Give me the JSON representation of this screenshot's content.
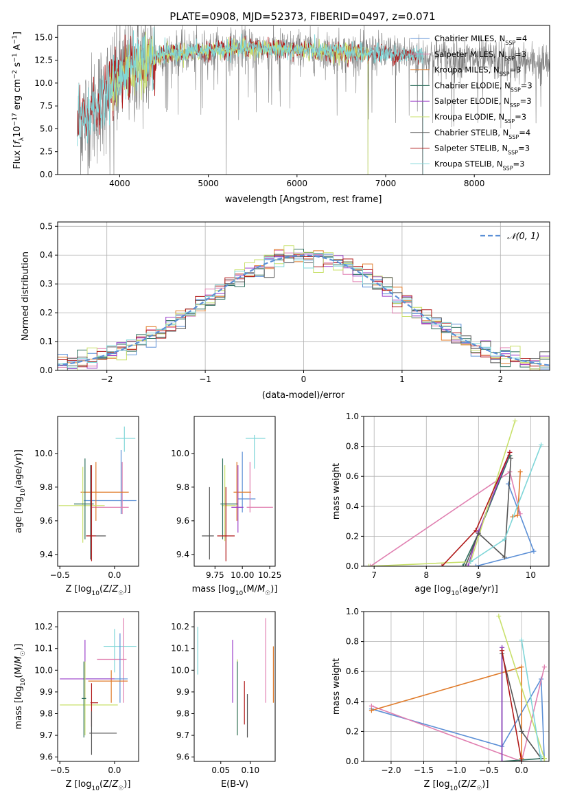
{
  "figure": {
    "title": "PLATE=0908, MJD=52373, FIBERID=0497, z=0.071"
  },
  "colors": {
    "Chabrier MILES": "#5b8fd6",
    "Salpeter MILES": "#e07fb0",
    "Kroupa MILES": "#e07b2a",
    "Chabrier ELODIE": "#2f6f5e",
    "Salpeter ELODIE": "#9b3fc9",
    "Kroupa ELODIE": "#c8e06a",
    "Chabrier STELIB": "#555555",
    "Salpeter STELIB": "#b01818",
    "Kroupa STELIB": "#7fd6d8",
    "data": "#808080",
    "normal": "#5b8fd6"
  },
  "chart_data": [
    {
      "id": "spectrum",
      "type": "line",
      "title": "PLATE=0908, MJD=52373, FIBERID=0497, z=0.071",
      "xlabel": "wavelength [Angstrom, rest frame]",
      "ylabel_parts": [
        "Flux [",
        "f",
        "λ",
        "10",
        "−17",
        " erg cm",
        "−2",
        " s",
        "−1",
        " A",
        "−1",
        "]"
      ],
      "xlim": [
        3300,
        8850
      ],
      "ylim": [
        0,
        16.3
      ],
      "xticks": [
        4000,
        5000,
        6000,
        7000,
        8000
      ],
      "yticks": [
        0.0,
        2.5,
        5.0,
        7.5,
        10.0,
        12.5,
        15.0
      ],
      "legend_position": "right",
      "legend": [
        {
          "base": "Chabrier MILES, N",
          "sub": "SSP",
          "post": "=4",
          "color_key": "Chabrier MILES"
        },
        {
          "base": "Salpeter MILES, N",
          "sub": "SSP",
          "post": "=3",
          "color_key": "Salpeter MILES"
        },
        {
          "base": "Kroupa MILES, N",
          "sub": "SSP",
          "post": "=3",
          "color_key": "Kroupa MILES"
        },
        {
          "base": "Chabrier ELODIE, N",
          "sub": "SSP",
          "post": "=3",
          "color_key": "Chabrier ELODIE"
        },
        {
          "base": "Salpeter ELODIE, N",
          "sub": "SSP",
          "post": "=3",
          "color_key": "Salpeter ELODIE"
        },
        {
          "base": "Kroupa ELODIE, N",
          "sub": "SSP",
          "post": "=3",
          "color_key": "Kroupa ELODIE"
        },
        {
          "base": "Chabrier STELIB, N",
          "sub": "SSP",
          "post": "=4",
          "color_key": "Chabrier STELIB"
        },
        {
          "base": "Salpeter STELIB, N",
          "sub": "SSP",
          "post": "=3",
          "color_key": "Salpeter STELIB"
        },
        {
          "base": "Kroupa STELIB, N",
          "sub": "SSP",
          "post": "=3",
          "color_key": "Kroupa STELIB"
        }
      ],
      "continuum_x": [
        3530,
        3700,
        3900,
        4100,
        4300,
        4500,
        4800,
        5100,
        5500,
        6000,
        6500,
        7000,
        7500,
        8000,
        8500,
        8850
      ],
      "continuum_y": [
        5.5,
        7.0,
        9.5,
        11.5,
        12.5,
        13.2,
        13.4,
        13.6,
        13.8,
        13.6,
        13.4,
        13.2,
        12.9,
        12.6,
        12.3,
        12.1
      ],
      "data_range": [
        3530,
        8850
      ],
      "model_ranges": {
        "Kroupa STELIB": [
          3520,
          7420
        ],
        "Salpeter STELIB": [
          3520,
          7420
        ],
        "Kroupa ELODIE": [
          3890,
          6800
        ]
      },
      "dips": [
        {
          "x": 3890,
          "y": 0.0
        },
        {
          "x": 3935,
          "y": 0.0
        },
        {
          "x": 5200,
          "y": 0.0
        },
        {
          "x": 6800,
          "y": 0.0
        },
        {
          "x": 7415,
          "y": 0.0
        }
      ]
    },
    {
      "id": "residuals",
      "type": "histogram",
      "xlabel": "(data-model)/error",
      "ylabel": "Normed distribution",
      "xlim": [
        -2.5,
        2.5
      ],
      "ylim": [
        0,
        0.515
      ],
      "xticks": [
        -2,
        -1,
        0,
        1,
        2
      ],
      "xtick_labels": [
        "−2",
        "−1",
        "0",
        "1",
        "2"
      ],
      "yticks": [
        0.0,
        0.1,
        0.2,
        0.3,
        0.4,
        0.5
      ],
      "legend_label": "𝒩(0, 1)",
      "legend_position": "top-right",
      "bin_width": 0.1,
      "series_order": [
        "Chabrier MILES",
        "Salpeter MILES",
        "Kroupa MILES",
        "Chabrier ELODIE",
        "Salpeter ELODIE",
        "Kroupa ELODIE",
        "Chabrier STELIB",
        "Salpeter STELIB",
        "Kroupa STELIB"
      ]
    },
    {
      "id": "age_vs_z",
      "type": "errorbar",
      "xlabel": "Z [log10(Z/Z☉)]",
      "ylabel": "age  [log10(age/yr)]",
      "xlim": [
        -0.52,
        0.22
      ],
      "ylim": [
        9.33,
        10.22
      ],
      "xticks": [
        -0.5,
        0.0
      ],
      "xtick_labels": [
        "−0.5",
        "0.0"
      ],
      "yticks": [
        9.4,
        9.6,
        9.8,
        10.0
      ],
      "points": [
        {
          "series": "Kroupa STELIB",
          "x": 0.09,
          "y": 10.09,
          "xerr": [
            0.08,
            0.1
          ],
          "yerr": [
            0.08,
            0.07
          ]
        },
        {
          "series": "Chabrier MILES",
          "x": 0.06,
          "y": 9.72,
          "xerr": [
            0.34,
            0.14
          ],
          "yerr": [
            0.08,
            0.3
          ]
        },
        {
          "series": "Salpeter MILES",
          "x": 0.07,
          "y": 9.68,
          "xerr": [
            0.28,
            0.06
          ],
          "yerr": [
            0.04,
            0.27
          ]
        },
        {
          "series": "Kroupa MILES",
          "x": -0.17,
          "y": 9.77,
          "xerr": [
            0.14,
            0.3
          ],
          "yerr": [
            0.17,
            0.18
          ]
        },
        {
          "series": "Kroupa ELODIE",
          "x": -0.29,
          "y": 9.69,
          "xerr": [
            0.22,
            0.2
          ],
          "yerr": [
            0.22,
            0.23
          ]
        },
        {
          "series": "Chabrier ELODIE",
          "x": -0.27,
          "y": 9.7,
          "xerr": [
            0.1,
            0.08
          ],
          "yerr": [
            0.21,
            0.27
          ]
        },
        {
          "series": "Chabrier STELIB",
          "x": -0.22,
          "y": 9.51,
          "xerr": [
            0.04,
            0.14
          ],
          "yerr": [
            0.14,
            0.42
          ]
        },
        {
          "series": "Salpeter STELIB",
          "x": -0.21,
          "y": 9.51,
          "xerr": [
            0.05,
            0.04
          ],
          "yerr": [
            0.15,
            0.42
          ]
        }
      ]
    },
    {
      "id": "age_vs_mass",
      "type": "errorbar",
      "xlabel": "mass [log10(M/M☉)]",
      "ylabel": "",
      "xlim": [
        9.56,
        10.3
      ],
      "ylim": [
        9.33,
        10.22
      ],
      "xticks": [
        9.75,
        10.0,
        10.25
      ],
      "xtick_labels": [
        "9.75",
        "10.00",
        "10.25"
      ],
      "yticks": [
        9.4,
        9.6,
        9.8,
        10.0
      ],
      "points": [
        {
          "series": "Kroupa STELIB",
          "x": 10.11,
          "y": 10.09,
          "xerr": [
            0.08,
            0.1
          ],
          "yerr": [
            0.18,
            0.02
          ]
        },
        {
          "series": "Chabrier MILES",
          "x": 10.0,
          "y": 9.73,
          "xerr": [
            0.04,
            0.12
          ],
          "yerr": [
            0.08,
            0.28
          ]
        },
        {
          "series": "Salpeter MILES",
          "x": 10.07,
          "y": 9.68,
          "xerr": [
            0.03,
            0.21
          ],
          "yerr": [
            0.03,
            0.27
          ]
        },
        {
          "series": "Kroupa MILES",
          "x": 9.95,
          "y": 9.77,
          "xerr": [
            0.03,
            0.13
          ],
          "yerr": [
            0.17,
            0.18
          ]
        },
        {
          "series": "Kroupa ELODIE",
          "x": 9.84,
          "y": 9.69,
          "xerr": [
            0.03,
            0.1
          ],
          "yerr": [
            0.21,
            0.24
          ]
        },
        {
          "series": "Chabrier ELODIE",
          "x": 9.82,
          "y": 9.7,
          "xerr": [
            0.02,
            0.14
          ],
          "yerr": [
            0.21,
            0.27
          ]
        },
        {
          "series": "Salpeter ELODIE",
          "x": 9.96,
          "y": 9.68,
          "xerr": [
            0.06,
            0.05
          ],
          "yerr": [
            0.15,
            0.25
          ]
        },
        {
          "series": "Chabrier STELIB",
          "x": 9.7,
          "y": 9.51,
          "xerr": [
            0.07,
            0.04
          ],
          "yerr": [
            0.14,
            0.29
          ]
        },
        {
          "series": "Salpeter STELIB",
          "x": 9.85,
          "y": 9.51,
          "xerr": [
            0.08,
            0.08
          ],
          "yerr": [
            0.15,
            0.29
          ]
        }
      ]
    },
    {
      "id": "mass_weight_vs_age",
      "type": "line",
      "xlabel": "age  [log10(age/yr)]",
      "ylabel": "mass weight",
      "xlim": [
        6.8,
        10.35
      ],
      "ylim": [
        0,
        1.0
      ],
      "xticks": [
        7,
        8,
        9,
        10
      ],
      "yticks": [
        0.0,
        0.2,
        0.4,
        0.6,
        0.8,
        1.0
      ],
      "series": [
        {
          "name": "Chabrier MILES",
          "x": [
            9.57,
            10.06,
            8.95
          ],
          "y": [
            0.55,
            0.1,
            0.0
          ]
        },
        {
          "name": "Salpeter MILES",
          "x": [
            6.93,
            9.6,
            9.8
          ],
          "y": [
            0.0,
            0.63,
            0.35
          ]
        },
        {
          "name": "Kroupa MILES",
          "x": [
            9.8,
            9.75,
            9.65
          ],
          "y": [
            0.63,
            0.34,
            0.33
          ]
        },
        {
          "name": "Chabrier ELODIE",
          "x": [
            8.7,
            9.0,
            9.6
          ],
          "y": [
            0.0,
            0.22,
            0.74
          ]
        },
        {
          "name": "Salpeter ELODIE",
          "x": [
            8.8,
            9.0,
            9.6
          ],
          "y": [
            0.0,
            0.23,
            0.76
          ]
        },
        {
          "name": "Kroupa ELODIE",
          "x": [
            6.9,
            8.85,
            9.7
          ],
          "y": [
            0.0,
            0.03,
            0.97
          ]
        },
        {
          "name": "Chabrier STELIB",
          "x": [
            8.75,
            9.0,
            9.5,
            9.62
          ],
          "y": [
            0.0,
            0.22,
            0.06,
            0.72
          ]
        },
        {
          "name": "Salpeter STELIB",
          "x": [
            8.3,
            8.95,
            9.6
          ],
          "y": [
            0.0,
            0.24,
            0.76
          ]
        },
        {
          "name": "Kroupa STELIB",
          "x": [
            8.85,
            9.5,
            10.2
          ],
          "y": [
            0.03,
            0.18,
            0.81
          ]
        }
      ]
    },
    {
      "id": "mass_vs_z",
      "type": "errorbar",
      "xlabel": "Z [log10(Z/Z☉)]",
      "ylabel": "mass [log10(M/M☉)]",
      "xlim": [
        -0.52,
        0.22
      ],
      "ylim": [
        9.58,
        10.27
      ],
      "xticks": [
        -0.5,
        0.0
      ],
      "xtick_labels": [
        "−0.5",
        "0.0"
      ],
      "yticks": [
        9.6,
        9.7,
        9.8,
        9.9,
        10.0,
        10.1,
        10.2
      ],
      "points": [
        {
          "series": "Kroupa STELIB",
          "x": 0.0,
          "y": 10.11,
          "xerr": [
            0.1,
            0.2
          ],
          "yerr": [
            0.12,
            0.08
          ]
        },
        {
          "series": "Salpeter MILES",
          "x": 0.08,
          "y": 10.05,
          "xerr": [
            0.24,
            0.03
          ],
          "yerr": [
            0.2,
            0.19
          ]
        },
        {
          "series": "Chabrier MILES",
          "x": 0.05,
          "y": 9.96,
          "xerr": [
            0.31,
            0.07
          ],
          "yerr": [
            0.11,
            0.21
          ]
        },
        {
          "series": "Kroupa MILES",
          "x": -0.03,
          "y": 9.95,
          "xerr": [
            0.21,
            0.15
          ],
          "yerr": [
            0.1,
            0.05
          ]
        },
        {
          "series": "Salpeter ELODIE",
          "x": -0.27,
          "y": 9.96,
          "xerr": [
            0.23,
            0.27
          ],
          "yerr": [
            0.09,
            0.18
          ]
        },
        {
          "series": "Kroupa ELODIE",
          "x": -0.27,
          "y": 9.84,
          "xerr": [
            0.23,
            0.3
          ],
          "yerr": [
            0.14,
            0.2
          ]
        },
        {
          "series": "Chabrier ELODIE",
          "x": -0.28,
          "y": 9.87,
          "xerr": [
            0.02,
            0.02
          ],
          "yerr": [
            0.18,
            0.17
          ]
        },
        {
          "series": "Salpeter STELIB",
          "x": -0.21,
          "y": 9.85,
          "xerr": [
            0.01,
            0.06
          ],
          "yerr": [
            0.11,
            0.09
          ]
        },
        {
          "series": "Chabrier STELIB",
          "x": -0.21,
          "y": 9.71,
          "xerr": [
            0.02,
            0.23
          ],
          "yerr": [
            0.1,
            0.1
          ]
        }
      ]
    },
    {
      "id": "mass_vs_ebv",
      "type": "errorbar",
      "xlabel": "E(B-V)",
      "ylabel": "",
      "xlim": [
        0.005,
        0.142
      ],
      "ylim": [
        9.58,
        10.27
      ],
      "xticks": [
        0.05,
        0.1
      ],
      "xtick_labels": [
        "0.05",
        "0.10"
      ],
      "yticks": [
        9.6,
        9.7,
        9.8,
        9.9,
        10.0,
        10.1,
        10.2
      ],
      "points": [
        {
          "series": "Kroupa STELIB",
          "x": 0.011,
          "y": 10.08,
          "xerr": [
            0,
            0
          ],
          "yerr": [
            0.1,
            0.12
          ]
        },
        {
          "series": "Salpeter ELODIE",
          "x": 0.07,
          "y": 10.0,
          "xerr": [
            0,
            0
          ],
          "yerr": [
            0.15,
            0.14
          ]
        },
        {
          "series": "Kroupa ELODIE",
          "x": 0.078,
          "y": 9.87,
          "xerr": [
            0,
            0
          ],
          "yerr": [
            0.17,
            0.18
          ]
        },
        {
          "series": "Chabrier ELODIE",
          "x": 0.078,
          "y": 9.87,
          "xerr": [
            0,
            0
          ],
          "yerr": [
            0.17,
            0.17
          ]
        },
        {
          "series": "Salpeter STELIB",
          "x": 0.09,
          "y": 9.85,
          "xerr": [
            0,
            0
          ],
          "yerr": [
            0.1,
            0.1
          ]
        },
        {
          "series": "Chabrier STELIB",
          "x": 0.095,
          "y": 9.79,
          "xerr": [
            0,
            0
          ],
          "yerr": [
            0.1,
            0.1
          ]
        },
        {
          "series": "Salpeter MILES",
          "x": 0.126,
          "y": 10.05,
          "xerr": [
            0,
            0
          ],
          "yerr": [
            0.2,
            0.19
          ]
        },
        {
          "series": "Kroupa MILES",
          "x": 0.139,
          "y": 9.98,
          "xerr": [
            0,
            0
          ],
          "yerr": [
            0.13,
            0.13
          ]
        }
      ]
    },
    {
      "id": "mass_weight_vs_z",
      "type": "line",
      "xlabel": "Z [log10(Z/Z☉)]",
      "ylabel": "mass weight",
      "xlim": [
        -2.42,
        0.42
      ],
      "ylim": [
        0,
        1.0
      ],
      "xticks": [
        -2.0,
        -1.5,
        -1.0,
        -0.5,
        0.0
      ],
      "xtick_labels": [
        "−2.0",
        "−1.5",
        "−1.0",
        "−0.5",
        "0.0"
      ],
      "yticks": [
        0.0,
        0.2,
        0.4,
        0.6,
        0.8,
        1.0
      ],
      "series": [
        {
          "name": "Chabrier MILES",
          "x": [
            -2.3,
            -0.3,
            0.3,
            0.35
          ],
          "y": [
            0.35,
            0.1,
            0.55,
            0.0
          ]
        },
        {
          "name": "Salpeter MILES",
          "x": [
            -2.3,
            0.0,
            0.35
          ],
          "y": [
            0.37,
            0.0,
            0.63
          ]
        },
        {
          "name": "Kroupa MILES",
          "x": [
            -2.3,
            0.0,
            0.0
          ],
          "y": [
            0.34,
            0.63,
            0.02
          ]
        },
        {
          "name": "Chabrier ELODIE",
          "x": [
            -0.3,
            -0.3,
            0.35
          ],
          "y": [
            0.76,
            0.0,
            0.02
          ]
        },
        {
          "name": "Salpeter ELODIE",
          "x": [
            -0.3,
            -0.3
          ],
          "y": [
            0.76,
            0.0
          ]
        },
        {
          "name": "Kroupa ELODIE",
          "x": [
            -0.35,
            0.35,
            0.35
          ],
          "y": [
            0.97,
            0.02,
            0.0
          ]
        },
        {
          "name": "Chabrier STELIB",
          "x": [
            -0.3,
            0.0,
            0.3
          ],
          "y": [
            0.72,
            0.2,
            0.02
          ]
        },
        {
          "name": "Salpeter STELIB",
          "x": [
            -0.3,
            0.0
          ],
          "y": [
            0.74,
            0.0
          ]
        },
        {
          "name": "Kroupa STELIB",
          "x": [
            0.0,
            0.3,
            0.3
          ],
          "y": [
            0.81,
            0.0,
            0.03
          ]
        }
      ]
    }
  ]
}
